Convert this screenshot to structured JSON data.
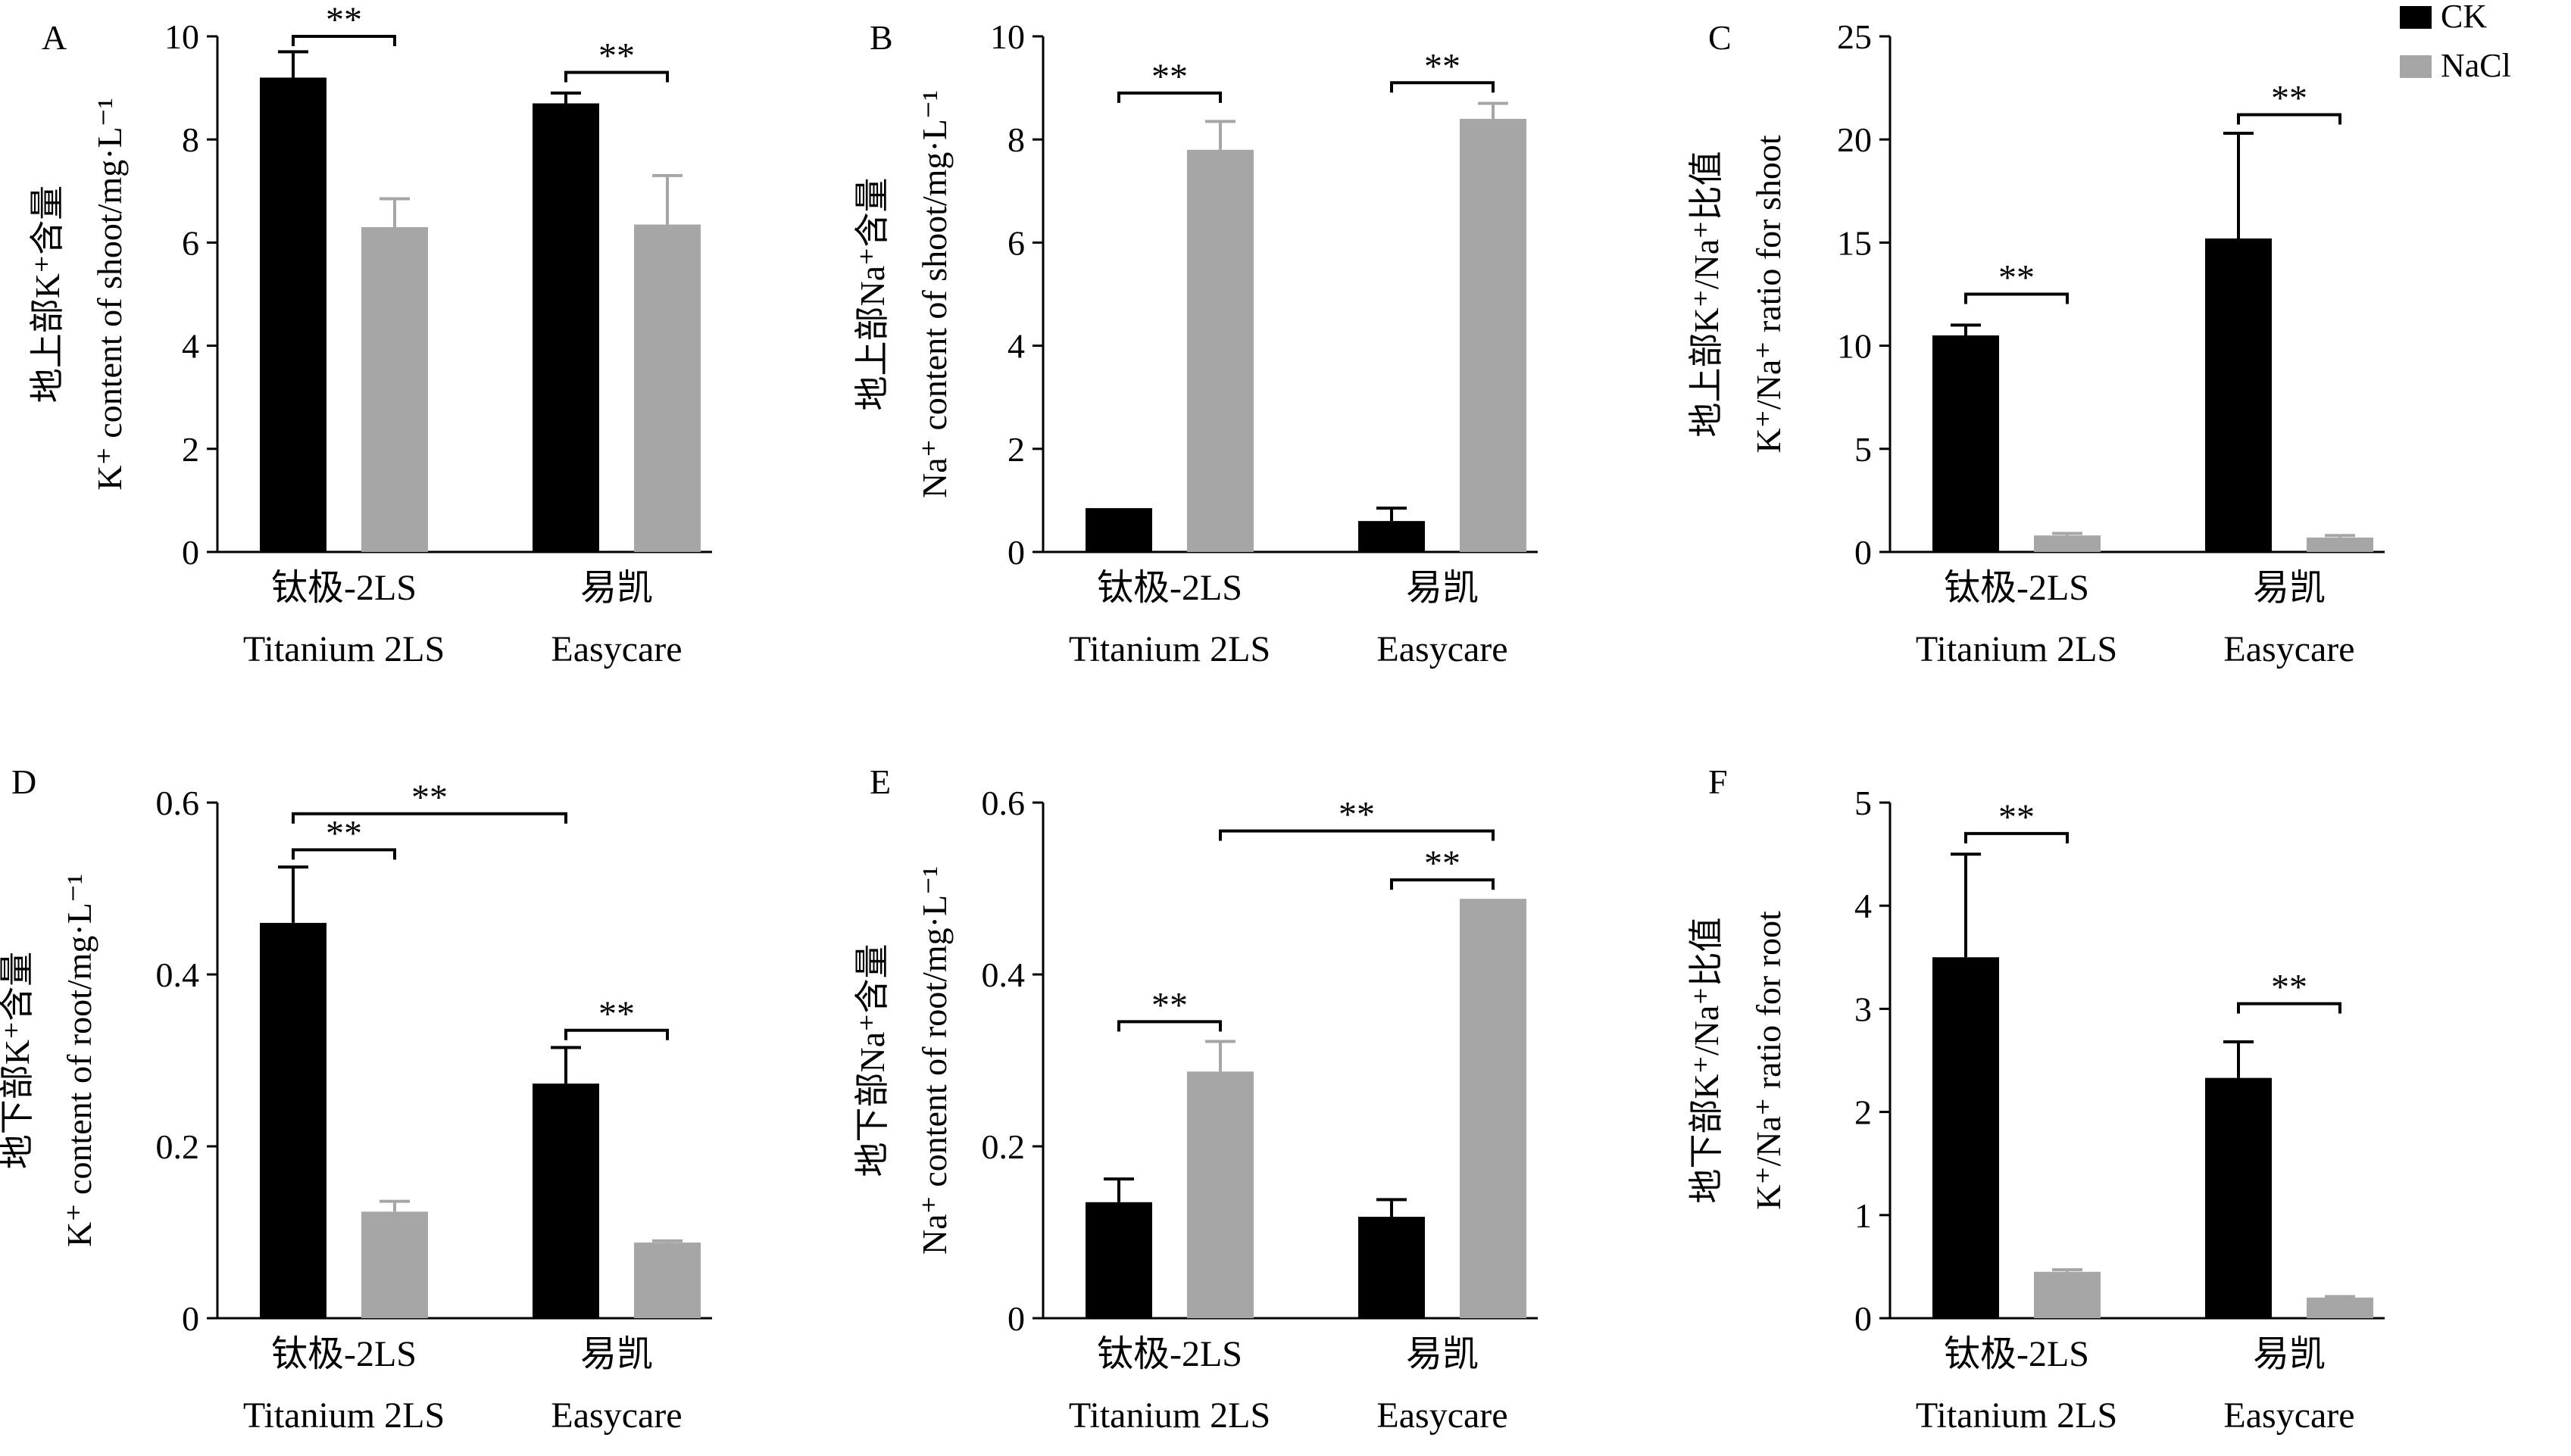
{
  "legend": {
    "items": [
      {
        "name": "CK",
        "color": "#000000"
      },
      {
        "name": "NaCl",
        "color": "#a6a6a6"
      }
    ],
    "position": "top-right"
  },
  "sig_mark": "**",
  "chart_data": [
    {
      "panel": "A",
      "type": "bar",
      "ylabel_cn": "地上部K⁺含量",
      "ylabel_en": "K⁺ content of shoot/mg·L⁻¹",
      "categories_cn": [
        "钛极-2LS",
        "易凯"
      ],
      "categories_en": [
        "Titanium 2LS",
        "Easycare"
      ],
      "ylim": [
        0,
        10
      ],
      "yticks": [
        "0",
        "2",
        "4",
        "6",
        "8",
        "10"
      ],
      "series": [
        {
          "name": "CK",
          "values": [
            9.2,
            8.7
          ],
          "errors": [
            0.5,
            0.2
          ]
        },
        {
          "name": "NaCl",
          "values": [
            6.3,
            6.35
          ],
          "errors": [
            0.55,
            0.95
          ]
        }
      ],
      "significance": [
        {
          "from": [
            0,
            0
          ],
          "to": [
            0,
            1
          ],
          "y": 10.0,
          "label": "**"
        },
        {
          "from": [
            1,
            0
          ],
          "to": [
            1,
            1
          ],
          "y": 9.3,
          "label": "**"
        }
      ]
    },
    {
      "panel": "B",
      "type": "bar",
      "ylabel_cn": "地上部Na⁺含量",
      "ylabel_en": "Na⁺ content of shoot/mg·L⁻¹",
      "categories_cn": [
        "钛极-2LS",
        "易凯"
      ],
      "categories_en": [
        "Titanium 2LS",
        "Easycare"
      ],
      "ylim": [
        0,
        10
      ],
      "yticks": [
        "0",
        "2",
        "4",
        "6",
        "8",
        "10"
      ],
      "series": [
        {
          "name": "CK",
          "values": [
            0.85,
            0.6
          ],
          "errors": [
            0.0,
            0.25
          ]
        },
        {
          "name": "NaCl",
          "values": [
            7.8,
            8.4
          ],
          "errors": [
            0.55,
            0.3
          ]
        }
      ],
      "significance": [
        {
          "from": [
            0,
            0
          ],
          "to": [
            0,
            1
          ],
          "y": 8.9,
          "label": "**"
        },
        {
          "from": [
            1,
            0
          ],
          "to": [
            1,
            1
          ],
          "y": 9.1,
          "label": "**"
        }
      ]
    },
    {
      "panel": "C",
      "type": "bar",
      "ylabel_cn": "地上部K⁺/Na⁺比值",
      "ylabel_en": "K⁺/Na⁺ ratio for shoot",
      "categories_cn": [
        "钛极-2LS",
        "易凯"
      ],
      "categories_en": [
        "Titanium 2LS",
        "Easycare"
      ],
      "ylim": [
        0,
        25
      ],
      "yticks": [
        "0",
        "5",
        "10",
        "15",
        "20",
        "25"
      ],
      "series": [
        {
          "name": "CK",
          "values": [
            10.5,
            15.2
          ],
          "errors": [
            0.5,
            5.1
          ]
        },
        {
          "name": "NaCl",
          "values": [
            0.8,
            0.7
          ],
          "errors": [
            0.1,
            0.1
          ]
        }
      ],
      "significance": [
        {
          "from": [
            0,
            0
          ],
          "to": [
            0,
            1
          ],
          "y": 12.5,
          "label": "**"
        },
        {
          "from": [
            1,
            0
          ],
          "to": [
            1,
            1
          ],
          "y": 21.2,
          "label": "**"
        }
      ]
    },
    {
      "panel": "D",
      "type": "bar",
      "ylabel_cn": "地下部K⁺含量",
      "ylabel_en": "K⁺ content of root/mg·L⁻¹",
      "categories_cn": [
        "钛极-2LS",
        "易凯"
      ],
      "categories_en": [
        "Titanium 2LS",
        "Easycare"
      ],
      "ylim": [
        0,
        0.6
      ],
      "yticks": [
        "0",
        "0.2",
        "0.4",
        "0.6"
      ],
      "series": [
        {
          "name": "CK",
          "values": [
            0.46,
            0.273
          ],
          "errors": [
            0.065,
            0.042
          ]
        },
        {
          "name": "NaCl",
          "values": [
            0.124,
            0.088
          ],
          "errors": [
            0.012,
            0.002
          ]
        }
      ],
      "significance": [
        {
          "from": [
            0,
            0
          ],
          "to": [
            0,
            1
          ],
          "y": 0.545,
          "label": "**"
        },
        {
          "from": [
            0,
            0
          ],
          "to": [
            1,
            0
          ],
          "y": 0.587,
          "label": "**"
        },
        {
          "from": [
            1,
            0
          ],
          "to": [
            1,
            1
          ],
          "y": 0.335,
          "label": "**"
        }
      ]
    },
    {
      "panel": "E",
      "type": "bar",
      "ylabel_cn": "地下部Na⁺含量",
      "ylabel_en": "Na⁺ content of root/mg·L⁻¹",
      "categories_cn": [
        "钛极-2LS",
        "易凯"
      ],
      "categories_en": [
        "Titanium 2LS",
        "Easycare"
      ],
      "ylim": [
        0,
        0.6
      ],
      "yticks": [
        "0",
        "0.2",
        "0.4",
        "0.6"
      ],
      "series": [
        {
          "name": "CK",
          "values": [
            0.135,
            0.118
          ],
          "errors": [
            0.027,
            0.02
          ]
        },
        {
          "name": "NaCl",
          "values": [
            0.287,
            0.488
          ],
          "errors": [
            0.035,
            0.0
          ]
        }
      ],
      "significance": [
        {
          "from": [
            0,
            0
          ],
          "to": [
            0,
            1
          ],
          "y": 0.345,
          "label": "**"
        },
        {
          "from": [
            1,
            0
          ],
          "to": [
            1,
            1
          ],
          "y": 0.51,
          "label": "**"
        },
        {
          "from": [
            0,
            1
          ],
          "to": [
            1,
            1
          ],
          "y": 0.567,
          "label": "**"
        }
      ]
    },
    {
      "panel": "F",
      "type": "bar",
      "ylabel_cn": "地下部K⁺/Na⁺比值",
      "ylabel_en": "K⁺/Na⁺ ratio for root",
      "categories_cn": [
        "钛极-2LS",
        "易凯"
      ],
      "categories_en": [
        "Titanium 2LS",
        "Easycare"
      ],
      "ylim": [
        0,
        5
      ],
      "yticks": [
        "0",
        "1",
        "2",
        "3",
        "4",
        "5"
      ],
      "series": [
        {
          "name": "CK",
          "values": [
            3.5,
            2.33
          ],
          "errors": [
            1.0,
            0.35
          ]
        },
        {
          "name": "NaCl",
          "values": [
            0.45,
            0.2
          ],
          "errors": [
            0.02,
            0.01
          ]
        }
      ],
      "significance": [
        {
          "from": [
            0,
            0
          ],
          "to": [
            0,
            1
          ],
          "y": 4.7,
          "label": "**"
        },
        {
          "from": [
            1,
            0
          ],
          "to": [
            1,
            1
          ],
          "y": 3.05,
          "label": "**"
        }
      ]
    }
  ]
}
